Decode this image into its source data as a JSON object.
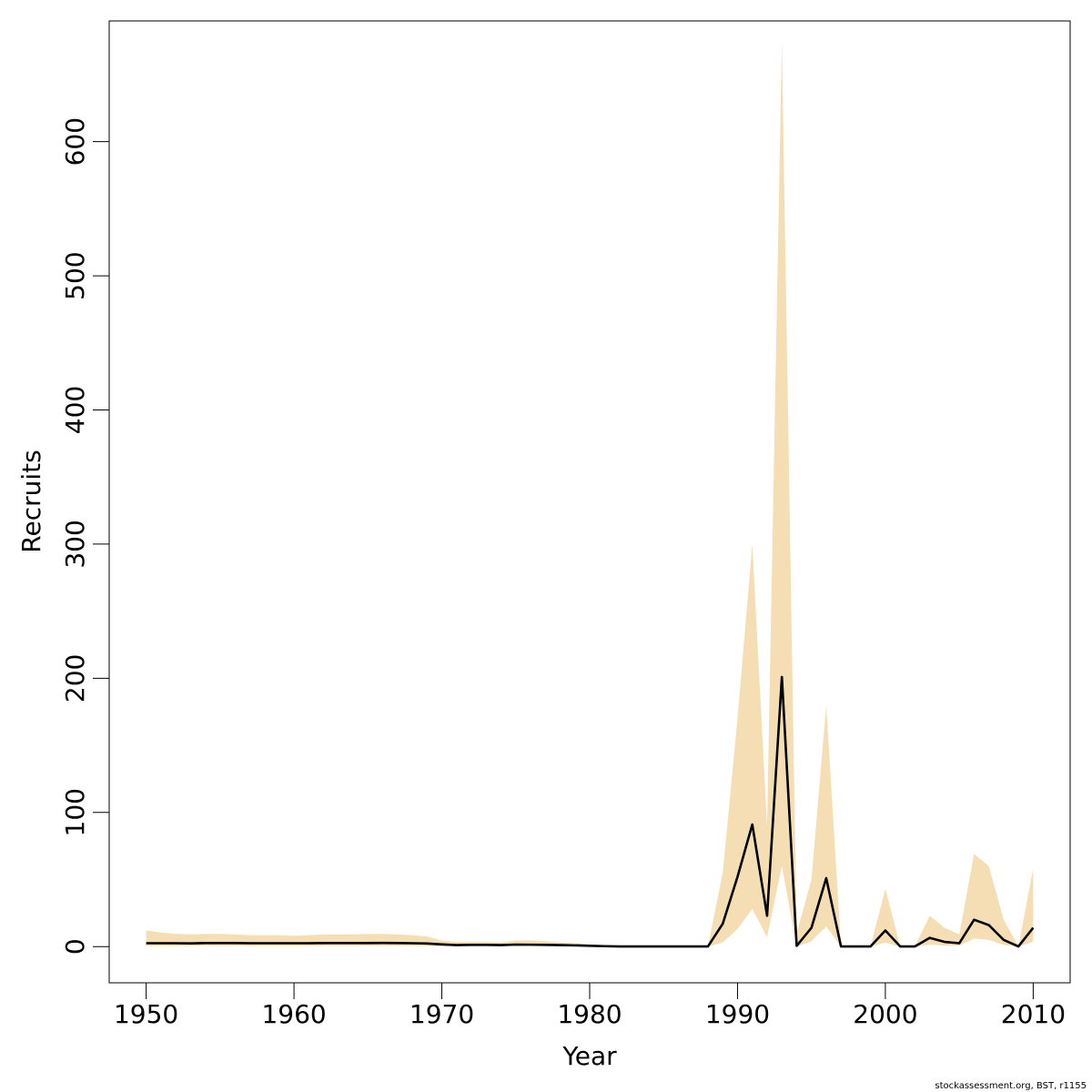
{
  "chart_data": {
    "type": "line",
    "xlabel": "Year",
    "ylabel": "Recruits",
    "xlim": [
      1947.5,
      2012.5
    ],
    "ylim": [
      -27,
      690
    ],
    "x_ticks": [
      1950,
      1960,
      1970,
      1980,
      1990,
      2000,
      2010
    ],
    "y_ticks": [
      0,
      100,
      200,
      300,
      400,
      500,
      600
    ],
    "colors": {
      "band": "#F5DEB3",
      "line": "#000000",
      "axis": "#000000"
    },
    "years": [
      1950,
      1951,
      1952,
      1953,
      1954,
      1955,
      1956,
      1957,
      1958,
      1959,
      1960,
      1961,
      1962,
      1963,
      1964,
      1965,
      1966,
      1967,
      1968,
      1969,
      1970,
      1971,
      1972,
      1973,
      1974,
      1975,
      1976,
      1977,
      1978,
      1979,
      1980,
      1981,
      1982,
      1983,
      1984,
      1985,
      1986,
      1987,
      1988,
      1989,
      1990,
      1991,
      1992,
      1993,
      1994,
      1995,
      1996,
      1997,
      1998,
      1999,
      2000,
      2001,
      2002,
      2003,
      2004,
      2005,
      2006,
      2007,
      2008,
      2009,
      2010
    ],
    "series": [
      {
        "values": [
          2.5,
          2.5,
          2.5,
          2.4,
          2.6,
          2.6,
          2.6,
          2.5,
          2.5,
          2.5,
          2.5,
          2.5,
          2.6,
          2.6,
          2.6,
          2.6,
          2.7,
          2.6,
          2.5,
          2.3,
          1.6,
          1.1,
          1.3,
          1.3,
          1.1,
          1.5,
          1.4,
          1.3,
          1.1,
          0.9,
          0.6,
          0.3,
          0.1,
          0.1,
          0.1,
          0.1,
          0.1,
          0.1,
          0.1,
          17,
          52,
          91,
          23,
          201,
          0.5,
          14,
          51,
          0.1,
          0.1,
          0.1,
          12,
          0.1,
          0.1,
          6.5,
          3.5,
          2.5,
          20,
          16,
          5,
          0.1,
          14
        ]
      }
    ],
    "band_upper": [
      12,
      10.5,
      9.5,
      9,
      9.5,
      9.5,
      9,
      8.5,
      8.5,
      8.5,
      8,
      8.5,
      9,
      9,
      9,
      9.5,
      9.5,
      9,
      8.5,
      7.5,
      4.5,
      3.5,
      3.5,
      3.5,
      3,
      4.5,
      4.5,
      4,
      3,
      2.5,
      1.5,
      0.8,
      0.4,
      0.3,
      0.3,
      0.3,
      0.3,
      0.3,
      0.3,
      55,
      170,
      300,
      90,
      675,
      10,
      50,
      180,
      0.3,
      0.3,
      0.3,
      43,
      0.3,
      0.3,
      23,
      14,
      9,
      69,
      60,
      20,
      0.3,
      58
    ],
    "band_lower": [
      0.5,
      0.5,
      0.5,
      0.5,
      0.6,
      0.6,
      0.6,
      0.5,
      0.5,
      0.5,
      0.5,
      0.5,
      0.6,
      0.6,
      0.6,
      0.6,
      0.6,
      0.6,
      0.5,
      0.5,
      0.4,
      0.3,
      0.3,
      0.3,
      0.3,
      0.4,
      0.4,
      0.3,
      0.3,
      0.2,
      0.1,
      0,
      0,
      0,
      0,
      0,
      0,
      0,
      0,
      3,
      13,
      28,
      7,
      60,
      0,
      4,
      15,
      0,
      0,
      0,
      3,
      0,
      0,
      1.5,
      0.8,
      0.6,
      6,
      5,
      1.2,
      0,
      3.5
    ],
    "credit": "stockassessment.org, BST, r1155"
  }
}
